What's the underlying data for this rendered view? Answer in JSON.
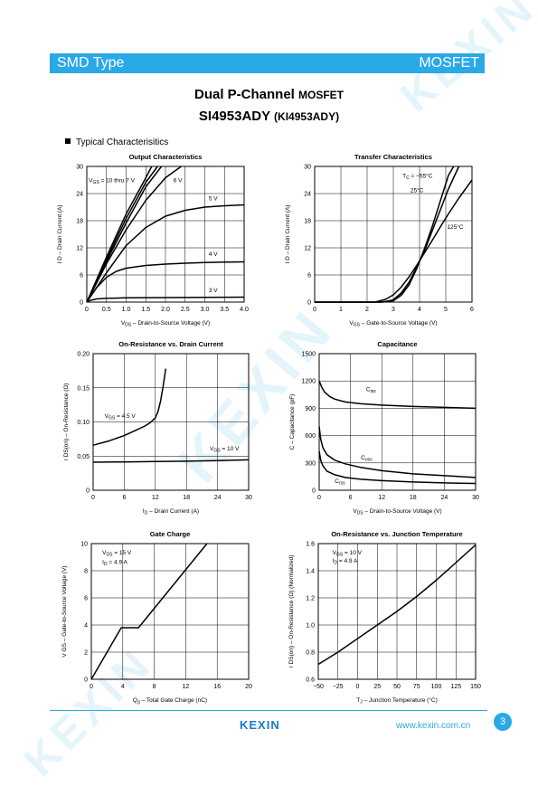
{
  "header": {
    "left": "SMD Type",
    "right": "MOSFET"
  },
  "title": {
    "line1_main": "Dual P-Channel",
    "line1_suffix": "MOSFET",
    "line2_main": "SI4953ADY",
    "line2_suffix": "(KI4953ADY)"
  },
  "section": {
    "label": "Typical Characterisitics"
  },
  "footer": {
    "logo": "KEXIN",
    "url": "www.kexin.com.cn",
    "page": "3"
  },
  "watermark": "KEXIN",
  "chart_data": [
    {
      "type": "line",
      "title": "Output Characteristics",
      "xlabel_main": "V",
      "xlabel_sub": "DS",
      "xlabel_rest": "– Drain-to-Source Voltage (V)",
      "ylabel": "I D – Drain Current (A)",
      "xlim": [
        0,
        4.0
      ],
      "ylim": [
        0,
        30
      ],
      "xticks": [
        "0",
        "0.5",
        "1.0",
        "1.5",
        "2.0",
        "2.5",
        "3.0",
        "3.5",
        "4.0"
      ],
      "yticks": [
        "0",
        "6",
        "12",
        "18",
        "24",
        "30"
      ],
      "grid": true,
      "series": [
        {
          "name": "VGS = 10 thru 7 V",
          "x": [
            0,
            0.5,
            1.0,
            1.5,
            1.65
          ],
          "y": [
            0,
            10,
            19.5,
            27.5,
            30
          ]
        },
        {
          "name": "",
          "x": [
            0,
            0.5,
            1.0,
            1.5,
            1.8
          ],
          "y": [
            0,
            9.5,
            18.5,
            26.5,
            30
          ]
        },
        {
          "name": "",
          "x": [
            0,
            0.5,
            1.0,
            1.5,
            1.9
          ],
          "y": [
            0,
            9,
            17.5,
            25.5,
            30
          ]
        },
        {
          "name": "6 V",
          "x": [
            0,
            0.5,
            1.0,
            1.5,
            2.0,
            2.4
          ],
          "y": [
            0,
            8.5,
            16,
            22.5,
            27.5,
            30
          ]
        },
        {
          "name": "5 V",
          "x": [
            0,
            0.5,
            1.0,
            1.5,
            2.0,
            2.5,
            3.0,
            3.5,
            4.0
          ],
          "y": [
            0,
            6.5,
            12.5,
            16.5,
            19,
            20.3,
            21,
            21.3,
            21.5
          ]
        },
        {
          "name": "4 V",
          "x": [
            0,
            0.25,
            0.5,
            0.75,
            1.0,
            1.5,
            2.0,
            2.5,
            3.0,
            3.5,
            4.0
          ],
          "y": [
            0,
            3.2,
            5.5,
            6.8,
            7.5,
            8.1,
            8.4,
            8.6,
            8.75,
            8.85,
            8.9
          ]
        },
        {
          "name": "3 V",
          "x": [
            0,
            0.1,
            0.25,
            0.5,
            1.0,
            2.0,
            3.0,
            4.0
          ],
          "y": [
            0,
            0.4,
            0.7,
            0.85,
            0.95,
            1.0,
            1.05,
            1.1
          ]
        }
      ],
      "annotations": [
        {
          "text": "V",
          "sub": "GS",
          "rest": " = 10 thru 7 V",
          "x": 0.05,
          "y": 26.5
        },
        {
          "text": "6 V",
          "x": 2.2,
          "y": 26.5
        },
        {
          "text": "5 V",
          "x": 3.1,
          "y": 22.5
        },
        {
          "text": "4 V",
          "x": 3.1,
          "y": 10.2
        },
        {
          "text": "3 V",
          "x": 3.1,
          "y": 2.2
        }
      ]
    },
    {
      "type": "line",
      "title": "Transfer Characteristics",
      "xlabel_main": "V",
      "xlabel_sub": "GS",
      "xlabel_rest": "– Gate-to-Source Voltage (V)",
      "ylabel": "I D – Drain Current (A)",
      "xlim": [
        0,
        6
      ],
      "ylim": [
        0,
        30
      ],
      "xticks": [
        "0",
        "1",
        "2",
        "3",
        "4",
        "5",
        "6"
      ],
      "yticks": [
        "0",
        "6",
        "12",
        "18",
        "24",
        "30"
      ],
      "grid": true,
      "series": [
        {
          "name": "TC = −55°C",
          "x": [
            0,
            2.5,
            3.0,
            3.3,
            3.6,
            3.9,
            4.2,
            4.5,
            4.8,
            5.1,
            5.3
          ],
          "y": [
            0,
            0,
            0.3,
            1.5,
            3.8,
            7.5,
            12,
            17,
            22.5,
            28,
            30
          ]
        },
        {
          "name": "25°C",
          "x": [
            0,
            2.6,
            3.0,
            3.3,
            3.6,
            3.9,
            4.2,
            4.5,
            4.8,
            5.1,
            5.5
          ],
          "y": [
            0,
            0,
            0.5,
            2,
            4.4,
            7.8,
            11.5,
            16,
            20.5,
            25,
            30
          ]
        },
        {
          "name": "125°C",
          "x": [
            0,
            2.3,
            2.7,
            3.0,
            3.3,
            3.6,
            3.9,
            4.2,
            4.5,
            4.8,
            5.1,
            5.5,
            6.0
          ],
          "y": [
            0,
            0,
            0.6,
            1.6,
            3.3,
            5.6,
            8.2,
            11,
            13.8,
            16.7,
            19.5,
            23,
            27
          ]
        }
      ],
      "annotations": [
        {
          "text": "T",
          "sub": "C",
          "rest": " = −55°C",
          "x": 3.35,
          "y": 27.5
        },
        {
          "text": "25°C",
          "x": 3.65,
          "y": 24.3
        },
        {
          "text": "125°C",
          "x": 5.05,
          "y": 16.2
        }
      ]
    },
    {
      "type": "line",
      "title": "On-Resistance vs. Drain Current",
      "xlabel_main": "I",
      "xlabel_sub": "D",
      "xlabel_rest": "– Drain Current (A)",
      "ylabel": "r DS(on) – On-Resistance (Ω)",
      "xlim": [
        0,
        30
      ],
      "ylim": [
        0,
        0.2
      ],
      "xticks": [
        "0",
        "6",
        "12",
        "18",
        "24",
        "30"
      ],
      "yticks": [
        "0",
        "0.05",
        "0.10",
        "0.15",
        "0.20"
      ],
      "grid": true,
      "series": [
        {
          "name": "VGS = 4.5 V",
          "x": [
            0,
            3,
            6,
            8,
            10,
            11,
            12,
            12.5,
            13,
            13.5,
            14
          ],
          "y": [
            0.066,
            0.072,
            0.08,
            0.087,
            0.094,
            0.099,
            0.106,
            0.115,
            0.13,
            0.152,
            0.178
          ]
        },
        {
          "name": "VGS = 10 V",
          "x": [
            0,
            6,
            12,
            18,
            24,
            30
          ],
          "y": [
            0.041,
            0.0415,
            0.042,
            0.0425,
            0.0435,
            0.0445
          ]
        }
      ],
      "annotations": [
        {
          "text": "V",
          "sub": "GS",
          "rest": " = 4.5 V",
          "x": 2.2,
          "y": 0.106
        },
        {
          "text": "V",
          "sub": "GS",
          "rest": " = 10 V",
          "x": 22.5,
          "y": 0.058
        }
      ]
    },
    {
      "type": "line",
      "title": "Capacitance",
      "xlabel_main": "V",
      "xlabel_sub": "DS",
      "xlabel_rest": "– Drain-to-Source Voltage (V)",
      "ylabel": "C – Capacitance (pF)",
      "xlim": [
        0,
        30
      ],
      "ylim": [
        0,
        1500
      ],
      "xticks": [
        "0",
        "6",
        "12",
        "18",
        "24",
        "30"
      ],
      "yticks": [
        "0",
        "300",
        "600",
        "900",
        "1200",
        "1500"
      ],
      "grid": true,
      "series": [
        {
          "name": "Ciss",
          "x": [
            0,
            0.5,
            1,
            2,
            3,
            5,
            8,
            12,
            18,
            24,
            30
          ],
          "y": [
            1200,
            1130,
            1080,
            1030,
            1000,
            970,
            950,
            935,
            920,
            910,
            900
          ]
        },
        {
          "name": "Coss",
          "x": [
            0,
            0.3,
            0.7,
            1.5,
            3,
            5,
            8,
            12,
            18,
            24,
            30
          ],
          "y": [
            700,
            560,
            470,
            390,
            330,
            290,
            250,
            215,
            180,
            160,
            140
          ]
        },
        {
          "name": "Crss",
          "x": [
            0,
            0.3,
            0.7,
            1.5,
            3,
            5,
            8,
            12,
            18,
            24,
            30
          ],
          "y": [
            430,
            330,
            270,
            210,
            170,
            140,
            120,
            105,
            90,
            80,
            75
          ]
        }
      ],
      "annotations": [
        {
          "text": "C",
          "sub": "iss",
          "x": 9,
          "y": 1090
        },
        {
          "text": "C",
          "sub": "oss",
          "x": 8,
          "y": 340
        },
        {
          "text": "C",
          "sub": "rss",
          "x": 3,
          "y": 80
        }
      ]
    },
    {
      "type": "line",
      "title": "Gate Charge",
      "xlabel_main": "Q",
      "xlabel_sub": "g",
      "xlabel_rest": "– Total Gate Charge (nC)",
      "ylabel": "V GS – Gate-to-Source Voltage (V)",
      "xlim": [
        0,
        20
      ],
      "ylim": [
        0,
        10
      ],
      "xticks": [
        "0",
        "4",
        "8",
        "12",
        "16",
        "20"
      ],
      "yticks": [
        "0",
        "2",
        "4",
        "6",
        "8",
        "10"
      ],
      "grid": true,
      "series": [
        {
          "name": "VDS = 15 V, ID = 4.9 A",
          "x": [
            0,
            3.8,
            6.0,
            14.7
          ],
          "y": [
            0,
            3.8,
            3.8,
            10
          ]
        }
      ],
      "annotations": [
        {
          "text": "V",
          "sub": "DS",
          "rest": " = 15 V",
          "x": 1.4,
          "y": 9.2
        },
        {
          "text": "I",
          "sub": "D",
          "rest": " = 4.9 A",
          "x": 1.4,
          "y": 8.5
        }
      ]
    },
    {
      "type": "line",
      "title": "On-Resistance vs. Junction Temperature",
      "xlabel_main": "T",
      "xlabel_sub": "J",
      "xlabel_rest": "– Junction Temperature (°C)",
      "ylabel": "r DS(on) – On-Resistance (Ω) (Normalized)",
      "xlim": [
        -50,
        150
      ],
      "ylim": [
        0.6,
        1.6
      ],
      "xticks": [
        "−50",
        "−25",
        "0",
        "25",
        "50",
        "75",
        "100",
        "125",
        "150"
      ],
      "yticks": [
        "0.6",
        "0.8",
        "1.0",
        "1.2",
        "1.4",
        "1.6"
      ],
      "grid": true,
      "series": [
        {
          "name": "VGS = 10 V, ID = 4.9 A",
          "x": [
            -50,
            -25,
            0,
            25,
            50,
            75,
            100,
            125,
            150
          ],
          "y": [
            0.71,
            0.8,
            0.9,
            1.0,
            1.1,
            1.21,
            1.33,
            1.46,
            1.59
          ]
        }
      ],
      "annotations": [
        {
          "text": "V",
          "sub": "GS",
          "rest": " = 10 V",
          "x": -32,
          "y": 1.52
        },
        {
          "text": "I",
          "sub": "D",
          "rest": " = 4.9 A",
          "x": -32,
          "y": 1.46
        }
      ]
    }
  ]
}
